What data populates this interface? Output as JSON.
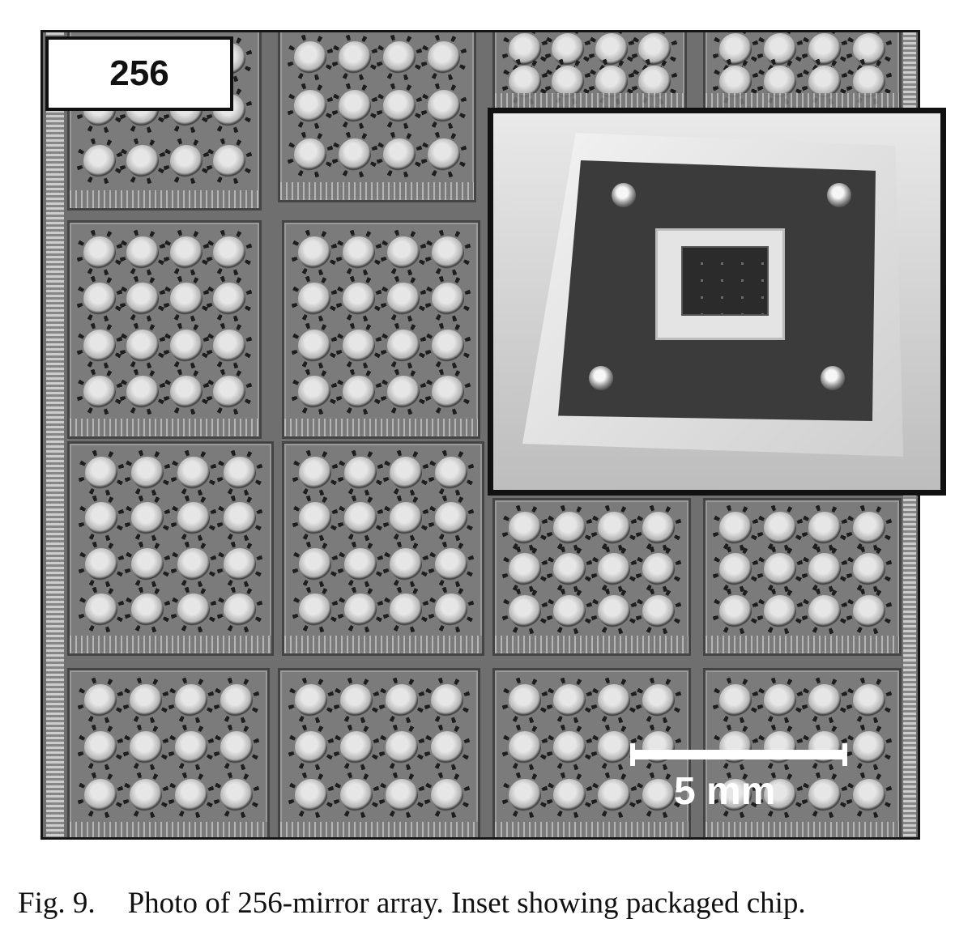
{
  "figure": {
    "label_box_text": "256",
    "scale_bar_label": "5 mm",
    "caption_number": "Fig. 9.",
    "caption_text": "Photo of 256-mirror array. Inset showing packaged chip."
  }
}
